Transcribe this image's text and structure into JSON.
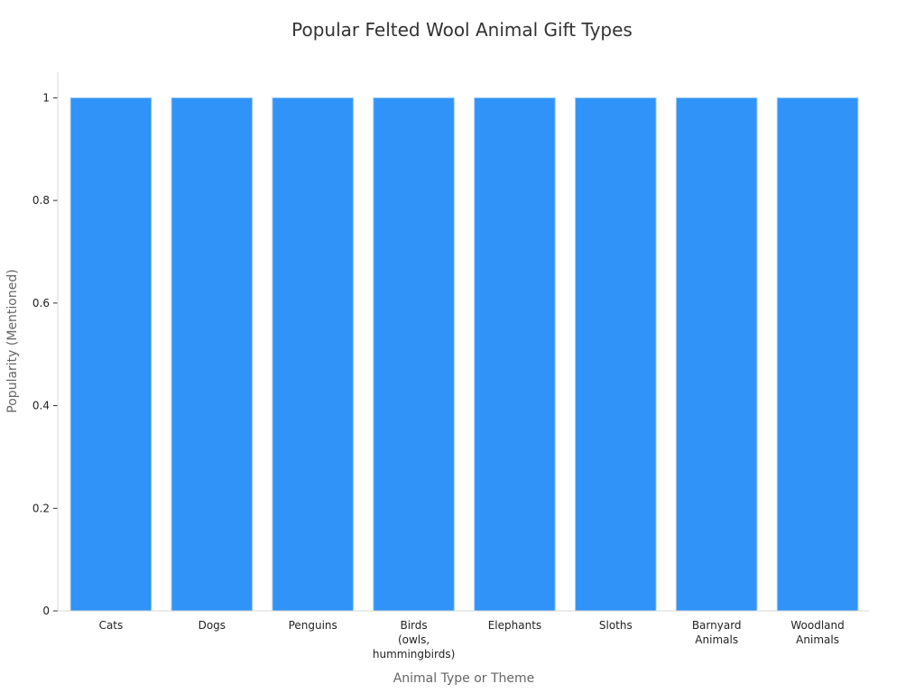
{
  "chart_data": {
    "type": "bar",
    "title": "Popular Felted Wool Animal Gift Types",
    "xlabel": "Animal Type or Theme",
    "ylabel": "Popularity (Mentioned)",
    "categories": [
      [
        "Cats"
      ],
      [
        "Dogs"
      ],
      [
        "Penguins"
      ],
      [
        "Birds",
        "(owls,",
        "hummingbirds)"
      ],
      [
        "Elephants"
      ],
      [
        "Sloths"
      ],
      [
        "Barnyard",
        "Animals"
      ],
      [
        "Woodland",
        "Animals"
      ]
    ],
    "values": [
      1,
      1,
      1,
      1,
      1,
      1,
      1,
      1
    ],
    "ylim": [
      0,
      1.05
    ],
    "yticks": [
      0,
      0.2,
      0.4,
      0.6,
      0.8,
      1
    ],
    "ytick_labels": [
      "0",
      "0.2",
      "0.4",
      "0.6",
      "0.8",
      "1"
    ],
    "grid": false,
    "legend": "none",
    "colors": {
      "bar": "#3093f8",
      "bar_edge": "#9fc9f4"
    }
  }
}
